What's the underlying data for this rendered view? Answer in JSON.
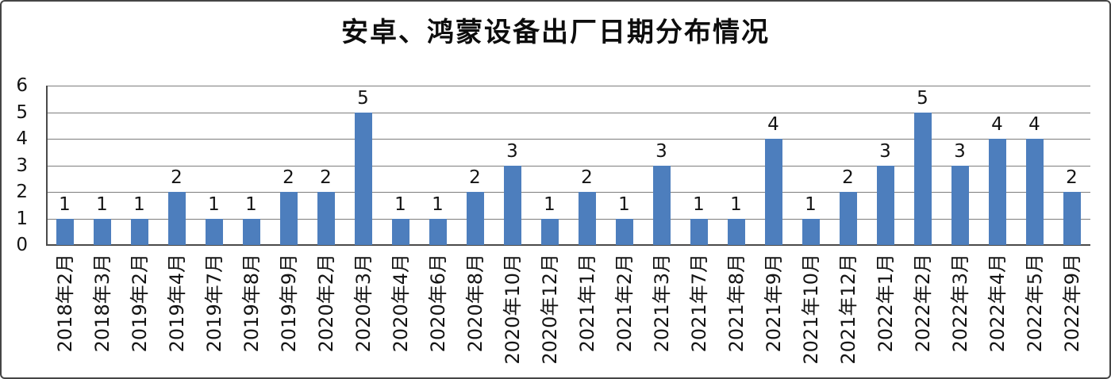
{
  "chart_data": {
    "type": "bar",
    "title": "安卓、鸿蒙设备出厂日期分布情况",
    "categories": [
      "2018年2月",
      "2018年3月",
      "2019年2月",
      "2019年4月",
      "2019年7月",
      "2019年8月",
      "2019年9月",
      "2020年2月",
      "2020年3月",
      "2020年4月",
      "2020年6月",
      "2020年8月",
      "2020年10月",
      "2020年12月",
      "2021年1月",
      "2021年2月",
      "2021年3月",
      "2021年7月",
      "2021年8月",
      "2021年9月",
      "2021年10月",
      "2021年12月",
      "2022年1月",
      "2022年2月",
      "2022年3月",
      "2022年4月",
      "2022年5月",
      "2022年9月"
    ],
    "values": [
      1,
      1,
      1,
      2,
      1,
      1,
      2,
      2,
      5,
      1,
      1,
      2,
      3,
      1,
      2,
      1,
      3,
      1,
      1,
      4,
      1,
      2,
      3,
      5,
      3,
      4,
      4,
      2
    ],
    "xlabel": "",
    "ylabel": "",
    "ylim": [
      0,
      6
    ],
    "yticks": [
      0,
      1,
      2,
      3,
      4,
      5,
      6
    ],
    "grid": "horizontal",
    "legend_position": "none",
    "data_labels": "above-bars",
    "x_tick_rotation": -90,
    "colors": {
      "bar": "#4d7ebd",
      "gridline": "#7d7d7d",
      "axis": "#4a4a4a",
      "text": "#141414",
      "background": "#ffffff",
      "border": "#454545"
    }
  }
}
